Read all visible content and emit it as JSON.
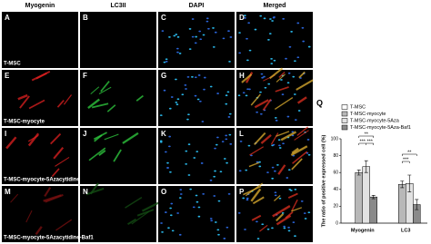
{
  "figure": {
    "column_headers": [
      "Myogenin",
      "LC3II",
      "DAPI",
      "Merged"
    ],
    "panel_letters": [
      "A",
      "B",
      "C",
      "D",
      "E",
      "F",
      "G",
      "H",
      "I",
      "J",
      "K",
      "L",
      "M",
      "N",
      "O",
      "P"
    ],
    "row_labels": [
      "T-MSC",
      "T-MSC-myocyte",
      "T-MSC-myocyte-5Azacytidine",
      "T-MSC-myocyte-5Azacytidine-Baf1"
    ]
  },
  "chart_data": {
    "type": "bar",
    "panel_label": "Q",
    "y_label": "The ratio of positive expressed cell (%)",
    "categories": [
      "Myogenin",
      "LC3"
    ],
    "series": [
      {
        "name": "T-MSC",
        "color": "#ffffff",
        "values": [
          0,
          0
        ],
        "errors": [
          0,
          0
        ]
      },
      {
        "name": "T-MSC-myocyte",
        "color": "#b8b8b8",
        "values": [
          60,
          46
        ],
        "errors": [
          3,
          4
        ]
      },
      {
        "name": "T-MSC-myocyte-5Aza",
        "color": "#e2e2e2",
        "values": [
          67,
          47
        ],
        "errors": [
          7,
          10
        ]
      },
      {
        "name": "T-MSC-myocyte-5Aza-Baf1",
        "color": "#8a8a8a",
        "values": [
          31,
          22
        ],
        "errors": [
          2,
          6
        ]
      }
    ],
    "ylim": [
      0,
      100
    ],
    "yticks": [
      0,
      20,
      40,
      60,
      80,
      100
    ],
    "annotations": [
      "***",
      "**",
      "***",
      "***",
      "**"
    ]
  }
}
